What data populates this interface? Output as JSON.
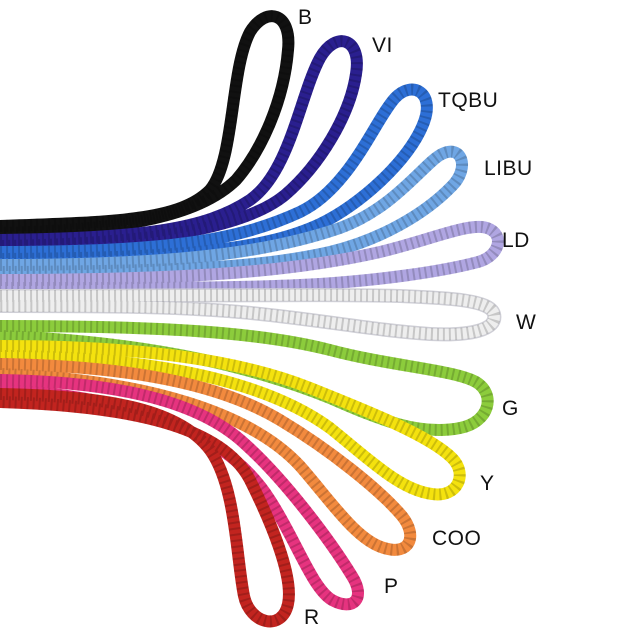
{
  "ropes": [
    {
      "label": "B",
      "color": "#111111"
    },
    {
      "label": "VI",
      "color": "#2a1f8f"
    },
    {
      "label": "TQBU",
      "color": "#2d6fd6"
    },
    {
      "label": "LIBU",
      "color": "#6fa6e4"
    },
    {
      "label": "LD",
      "color": "#b0a6e2"
    },
    {
      "label": "W",
      "color": "#eeeeee"
    },
    {
      "label": "G",
      "color": "#8ccc3c"
    },
    {
      "label": "Y",
      "color": "#f4e20e"
    },
    {
      "label": "COO",
      "color": "#f28a3e"
    },
    {
      "label": "P",
      "color": "#e6337f"
    },
    {
      "label": "R",
      "color": "#c2241f"
    }
  ]
}
